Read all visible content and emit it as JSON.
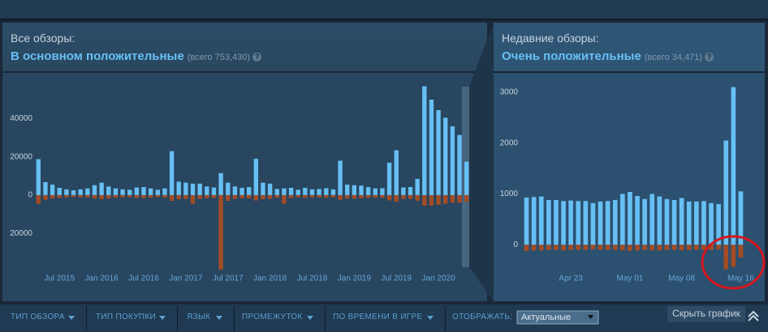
{
  "panels": [
    {
      "label": "Все обзоры:",
      "rating": "В основном положительные",
      "total": "(всего 753,430)",
      "help": "?"
    },
    {
      "label": "Недавние обзоры:",
      "rating": "Очень положительные",
      "total": "(всего 34,471)",
      "help": "?"
    }
  ],
  "chart_data": [
    {
      "type": "bar",
      "categories": [
        null,
        null,
        null,
        "Jul 2015",
        null,
        null,
        null,
        null,
        null,
        "Jan 2016",
        null,
        null,
        null,
        null,
        null,
        "Jul 2016",
        null,
        null,
        null,
        null,
        null,
        "Jan 2017",
        null,
        null,
        null,
        null,
        null,
        "Jul 2017",
        null,
        null,
        null,
        null,
        null,
        "Jan 2018",
        null,
        null,
        null,
        null,
        null,
        "Jul 2018",
        null,
        null,
        null,
        null,
        null,
        "Jan 2019",
        null,
        null,
        null,
        null,
        null,
        "Jul 2019",
        null,
        null,
        null,
        null,
        null,
        "Jan 2020",
        null,
        null,
        null,
        null
      ],
      "series": [
        {
          "color": "#66c0f4",
          "values": [
            18800,
            6800,
            5500,
            3800,
            3000,
            2500,
            3000,
            3500,
            5200,
            6500,
            4500,
            3500,
            3000,
            2800,
            4000,
            4200,
            3500,
            2800,
            3500,
            23000,
            7000,
            6500,
            6000,
            6000,
            4500,
            4000,
            11500,
            6500,
            4500,
            3800,
            4200,
            19000,
            6500,
            6000,
            3200,
            3500,
            3800,
            2800,
            3800,
            3000,
            3200,
            3600,
            3000,
            18000,
            5500,
            5200,
            5000,
            4200,
            3500,
            3600,
            17000,
            23500,
            4000,
            4200,
            8500,
            57000,
            50000,
            44500,
            40500,
            36000,
            31500,
            17500
          ]
        },
        {
          "color": "#a34c25",
          "values": [
            -4500,
            -2500,
            -1800,
            -1500,
            -1200,
            -1000,
            -1200,
            -1300,
            -1800,
            -2200,
            -1800,
            -1400,
            -1200,
            -1100,
            -1500,
            -1600,
            -1400,
            -1100,
            -1300,
            -3000,
            -2200,
            -2000,
            -4500,
            -2000,
            -1600,
            -1500,
            -39000,
            -3000,
            -2000,
            -1600,
            -1700,
            -2800,
            -2200,
            -2000,
            -1400,
            -4500,
            -1500,
            -1200,
            -1500,
            -1200,
            -1300,
            -1500,
            -1200,
            -2500,
            -1800,
            -1800,
            -1700,
            -1500,
            -1300,
            -1400,
            -2800,
            -3500,
            -2000,
            -2000,
            -3000,
            -5500,
            -5500,
            -5000,
            -4500,
            -4000,
            -4000,
            -3500
          ]
        }
      ],
      "ylim": [
        -42000,
        64000
      ],
      "yticks": [
        {
          "value": -20000,
          "label": "20000"
        },
        0,
        20000,
        40000
      ],
      "grid": false
    },
    {
      "type": "bar",
      "categories": [
        null,
        null,
        null,
        null,
        null,
        null,
        "Apr 23",
        null,
        null,
        null,
        null,
        null,
        null,
        null,
        "May 01",
        null,
        null,
        null,
        null,
        null,
        null,
        "May 08",
        null,
        null,
        null,
        null,
        null,
        null,
        null,
        "May 16"
      ],
      "series": [
        {
          "color": "#66c0f4",
          "values": [
            930,
            940,
            950,
            880,
            880,
            860,
            870,
            860,
            860,
            820,
            850,
            860,
            880,
            1000,
            1040,
            960,
            900,
            1000,
            950,
            900,
            880,
            920,
            850,
            850,
            860,
            820,
            800,
            2050,
            3100,
            1050
          ]
        },
        {
          "color": "#a34c25",
          "values": [
            -120,
            -110,
            -110,
            -100,
            -100,
            -110,
            -100,
            -100,
            -100,
            -90,
            -100,
            -100,
            -100,
            -110,
            -120,
            -110,
            -100,
            -110,
            -110,
            -100,
            -100,
            -110,
            -100,
            -100,
            -100,
            -100,
            -90,
            -480,
            -430,
            -250
          ]
        }
      ],
      "ylim": [
        -600,
        3380
      ],
      "yticks": [
        0,
        1000,
        2000,
        3000
      ],
      "grid": false
    }
  ],
  "filters": [
    "ТИП ОБЗОРА",
    "ТИП ПОКУПКИ",
    "ЯЗЫК",
    "ПРОМЕЖУТОК",
    "ПО ВРЕМЕНИ В ИГРЕ"
  ],
  "display_label": "ОТОБРАЖАТЬ:",
  "display_value": "Актуальные",
  "hide_button": "Скрыть график"
}
